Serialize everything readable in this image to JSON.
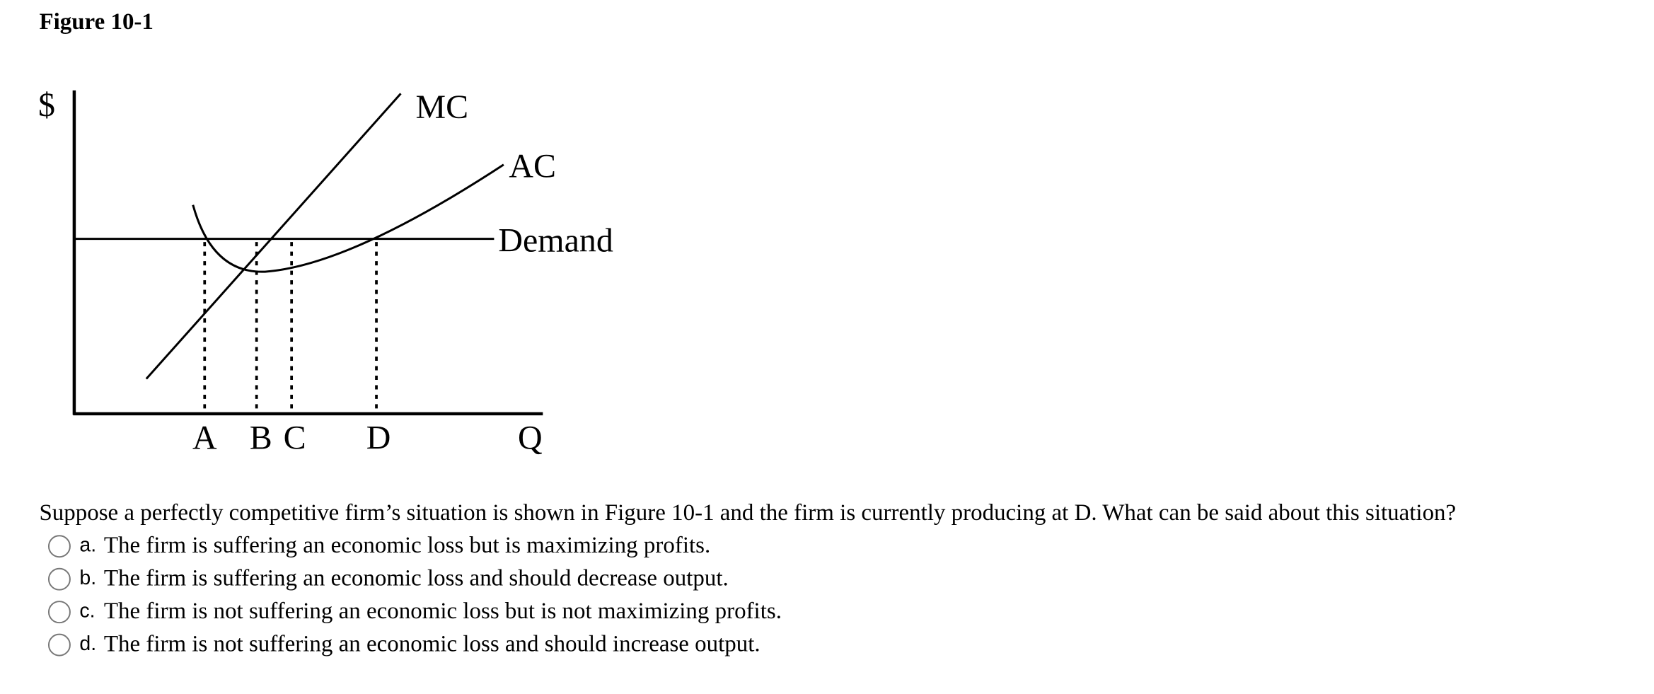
{
  "figure": {
    "title": "Figure 10-1",
    "labels": {
      "y_axis": "$",
      "x_axis": "Q",
      "mc": "MC",
      "ac": "AC",
      "demand": "Demand",
      "a": "A",
      "b": "B",
      "c": "C",
      "d": "D"
    }
  },
  "question": {
    "text": "Suppose a perfectly competitive firm’s situation is shown in Figure 10-1 and the firm is currently producing at D. What can be said about this situation?",
    "options": [
      {
        "letter": "a.",
        "text": "The firm is suffering an economic loss but is maximizing profits."
      },
      {
        "letter": "b.",
        "text": "The firm is suffering an economic loss and should decrease output."
      },
      {
        "letter": "c.",
        "text": "The firm is not suffering an economic loss but is not maximizing profits."
      },
      {
        "letter": "d.",
        "text": "The firm is not suffering an economic loss and should increase output."
      }
    ]
  }
}
